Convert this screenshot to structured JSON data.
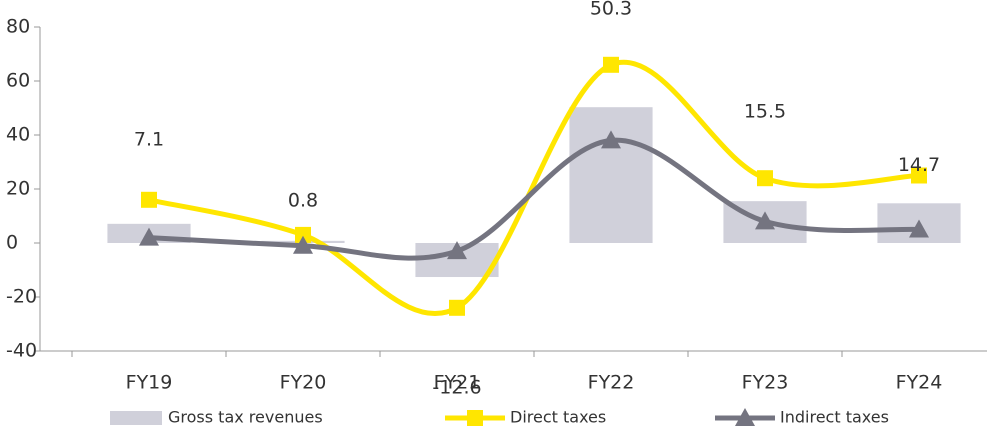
{
  "chart_data": {
    "type": "combo",
    "categories": [
      "FY19",
      "FY20",
      "FY21",
      "FY22",
      "FY23",
      "FY24"
    ],
    "series": [
      {
        "name": "Gross tax revenues",
        "type": "bar",
        "color": "#d0d0da",
        "values": [
          7.1,
          0.8,
          -12.6,
          50.3,
          15.5,
          14.7
        ]
      },
      {
        "name": "Direct taxes",
        "type": "line",
        "marker": "square",
        "color": "#ffe600",
        "values": [
          16,
          3,
          -24,
          66,
          24,
          25
        ]
      },
      {
        "name": "Indirect taxes",
        "type": "line",
        "marker": "triangle",
        "color": "#747480",
        "values": [
          2,
          -1,
          -3,
          38,
          8,
          5
        ]
      }
    ],
    "ylim": [
      -40,
      80
    ],
    "yticks": [
      -40,
      -20,
      0,
      20,
      40,
      60,
      80
    ],
    "grid": false,
    "legend": "bottom",
    "smooth": true
  }
}
